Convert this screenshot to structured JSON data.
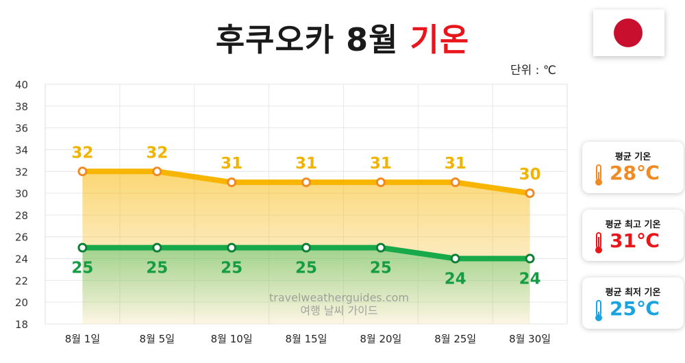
{
  "title": {
    "main": "후쿠오카 8월",
    "highlight": "기온"
  },
  "unit_label": "단위 : ℃",
  "watermark": {
    "line1": "travelweatherguides.com",
    "line2": "여행 날씨 가이드"
  },
  "cards": {
    "avg": {
      "label": "평균 기온",
      "value": "28℃",
      "color": "#f08a24",
      "icon": "thermometer-icon"
    },
    "high": {
      "label": "평균 최고 기온",
      "value": "31℃",
      "color": "#e8151b",
      "icon": "thermometer-icon"
    },
    "low": {
      "label": "평균 최저 기온",
      "value": "25℃",
      "color": "#1aa3e0",
      "icon": "thermometer-icon"
    }
  },
  "flag": {
    "name": "japan-flag-icon",
    "circle_color": "#c8102e"
  },
  "chart_data": {
    "type": "line",
    "categories": [
      "8월 1일",
      "8월 5일",
      "8월 10일",
      "8월 15일",
      "8월 20일",
      "8월 25일",
      "8월 30일"
    ],
    "series": [
      {
        "values": [
          32,
          32,
          31,
          31,
          31,
          31,
          30
        ],
        "color": "#f7b500",
        "marker": "#f08a24",
        "label_color": "#f0b400"
      },
      {
        "values": [
          25,
          25,
          25,
          25,
          25,
          24,
          24
        ],
        "color": "#17a94a",
        "marker": "#0f7f35",
        "label_color": "#169c44"
      }
    ],
    "ylim": [
      18,
      40
    ],
    "yticks": [
      18,
      20,
      22,
      24,
      26,
      28,
      30,
      32,
      34,
      36,
      38,
      40
    ],
    "grid": true
  }
}
